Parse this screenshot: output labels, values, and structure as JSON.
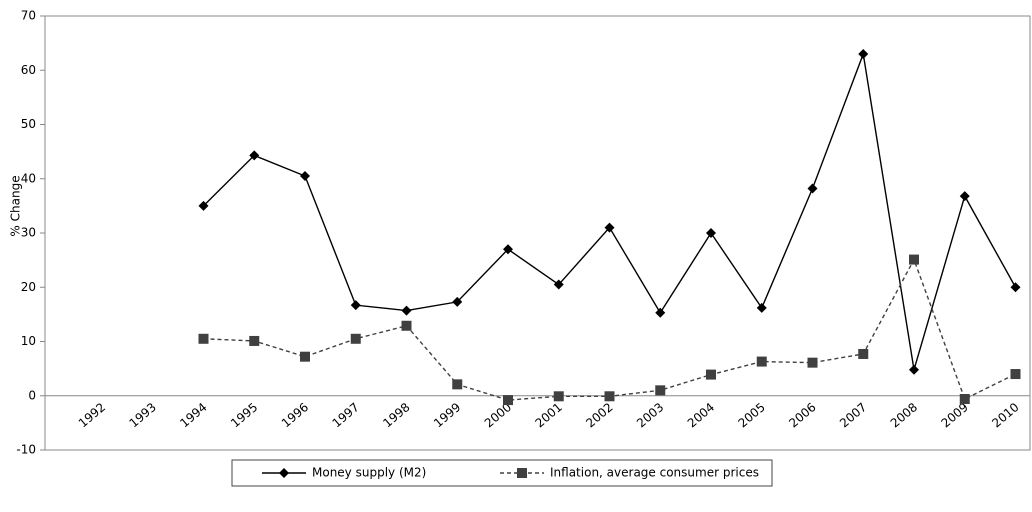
{
  "chart_data": {
    "type": "line",
    "y_label": "% Change",
    "categories": [
      "1992",
      "1993",
      "1994",
      "1995",
      "1996",
      "1997",
      "1998",
      "1999",
      "2000",
      "2001",
      "2002",
      "2003",
      "2004",
      "2005",
      "2006",
      "2007",
      "2008",
      "2009",
      "2010"
    ],
    "series": [
      {
        "name": "Money supply (M2)",
        "color": "#000000",
        "marker": "diamond",
        "dashed": false,
        "values": [
          null,
          null,
          35,
          44.3,
          40.5,
          16.7,
          15.7,
          17.3,
          27,
          20.5,
          31,
          15.3,
          30,
          16.2,
          38.2,
          63,
          4.8,
          36.8,
          20
        ]
      },
      {
        "name": "Inflation, average consumer prices",
        "color": "#404040",
        "marker": "square",
        "dashed": true,
        "values": [
          null,
          null,
          10.5,
          10.1,
          7.2,
          10.5,
          12.9,
          2.1,
          -0.8,
          -0.1,
          -0.1,
          1,
          3.9,
          6.3,
          6.1,
          7.7,
          25.1,
          -0.6,
          4
        ]
      }
    ],
    "ylim": [
      -10,
      70
    ],
    "yticks": [
      -10,
      0,
      10,
      20,
      30,
      40,
      50,
      60,
      70
    ],
    "legend": "bottom"
  }
}
